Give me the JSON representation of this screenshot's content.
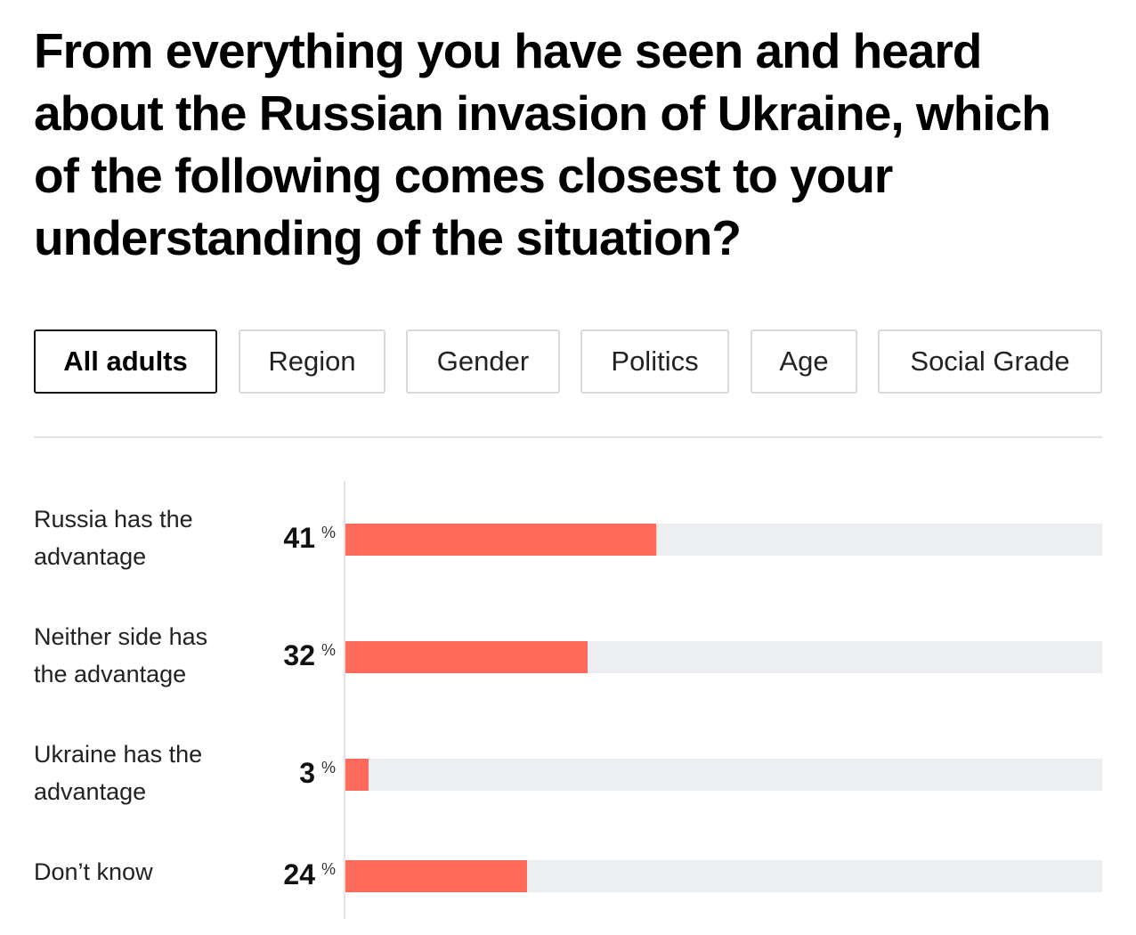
{
  "question": "From everything you have seen and heard about the Russian invasion of Ukraine, which of the following comes closest to your understanding of the situation?",
  "filters": [
    {
      "label": "All adults",
      "active": true
    },
    {
      "label": "Region",
      "active": false
    },
    {
      "label": "Gender",
      "active": false
    },
    {
      "label": "Politics",
      "active": false
    },
    {
      "label": "Age",
      "active": false
    },
    {
      "label": "Social Grade",
      "active": false
    }
  ],
  "colors": {
    "bar": "#ff6b5b",
    "track": "#edeef1"
  },
  "unit_symbol": "%",
  "chart_data": {
    "type": "bar",
    "orientation": "horizontal",
    "categories": [
      "Russia has the advantage",
      "Neither side has the advantage",
      "Ukraine has the advantage",
      "Don’t know"
    ],
    "values": [
      41,
      32,
      3,
      24
    ],
    "unit": "%",
    "xlim": [
      0,
      100
    ],
    "title": "From everything you have seen and heard about the Russian invasion of Ukraine, which of the following comes closest to your understanding of the situation?"
  }
}
